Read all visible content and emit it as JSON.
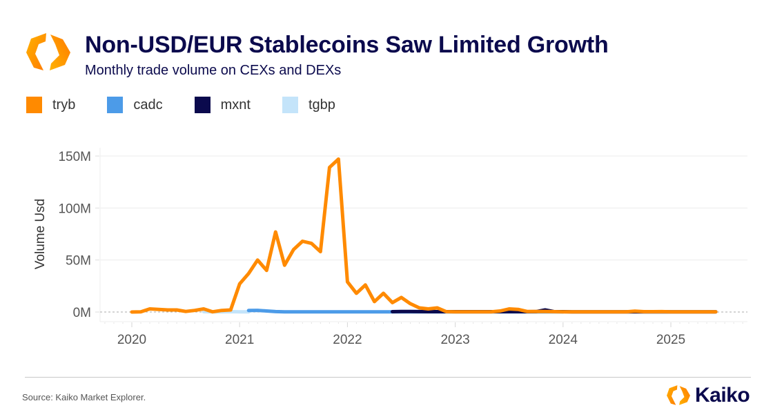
{
  "header": {
    "title": "Non-USD/EUR Stablecoins Saw Limited Growth",
    "subtitle": "Monthly trade volume on CEXs and DEXs",
    "logo_icon": "kaiko-hexagon-logo"
  },
  "legend": [
    {
      "label": "tryb",
      "color": "#ff8a00"
    },
    {
      "label": "cadc",
      "color": "#4c9be8"
    },
    {
      "label": "mxnt",
      "color": "#0b0a4d"
    },
    {
      "label": "tgbp",
      "color": "#c4e4fa"
    }
  ],
  "footer": {
    "source": "Source: Kaiko Market Explorer.",
    "brand": "Kaiko"
  },
  "chart_data": {
    "type": "line",
    "title": "Non-USD/EUR Stablecoins Saw Limited Growth",
    "subtitle": "Monthly trade volume on CEXs and DEXs",
    "xlabel": "",
    "ylabel": "Volume Usd",
    "ylim": [
      0,
      150
    ],
    "yunit": "M",
    "yticks": [
      0,
      50,
      100,
      150
    ],
    "ytick_labels": [
      "0M",
      "50M",
      "100M",
      "150M"
    ],
    "xticks": [
      2020,
      2021,
      2022,
      2023,
      2024,
      2025
    ],
    "xtick_labels": [
      "2020",
      "2021",
      "2022",
      "2023",
      "2024",
      "2025"
    ],
    "xlim": [
      "2019-08",
      "2026-01"
    ],
    "grid": true,
    "legend_position": "top-left",
    "series": [
      {
        "name": "tgbp",
        "color": "#c4e4fa",
        "start": "2020-09",
        "values": [
          0.3,
          0.2,
          0.2,
          0.3,
          0.2,
          0.1
        ]
      },
      {
        "name": "cadc",
        "color": "#4c9be8",
        "start": "2021-02",
        "values": [
          1.5,
          1.6,
          1.0,
          0.4,
          0.2,
          0.1,
          0.1,
          0.1,
          0.1,
          0.1,
          0.1,
          0.1,
          0.1,
          0.1,
          0.1,
          0.1,
          0.1,
          0.1,
          0.1,
          0.1,
          0.1,
          0.1,
          0.1,
          0.1,
          0.1,
          0.1,
          0.1,
          0.1,
          0.1,
          0.1,
          0.1,
          0.1,
          0.1,
          0.2,
          0.2,
          0.1
        ]
      },
      {
        "name": "mxnt",
        "color": "#0b0a4d",
        "start": "2022-06",
        "values": [
          0.3,
          0.5,
          0.5,
          0.4,
          0.3,
          0.3,
          0.3,
          0.3,
          0.3,
          0.3,
          0.3,
          0.3,
          0.3,
          0.3,
          0.3,
          0.3,
          0.4,
          2.0,
          0.3,
          0.3,
          0.2,
          0.2,
          0.2,
          0.2,
          0.2,
          0.2,
          0.2,
          0.2,
          0.2,
          0.2,
          0.2,
          0.2,
          0.2,
          0.2,
          0.2,
          0.2,
          0.2
        ]
      },
      {
        "name": "tryb",
        "color": "#ff8a00",
        "start": "2020-01",
        "values": [
          0.0,
          0.2,
          3.0,
          2.5,
          2.0,
          2.0,
          0.5,
          1.5,
          3.0,
          0.2,
          1.5,
          2.0,
          27,
          37,
          50,
          40,
          77,
          45,
          60,
          68,
          66,
          58,
          139,
          147,
          29,
          18,
          26,
          10,
          18,
          9,
          14,
          8,
          4,
          3,
          4,
          0.3,
          0.2,
          0.2,
          0.2,
          0.2,
          0.2,
          1.0,
          3.0,
          2.5,
          0.5,
          0.5,
          0.5,
          0.3,
          0.2,
          0.2,
          0.2,
          0.2,
          0.2,
          0.2,
          0.2,
          0.2,
          0.8,
          0.3,
          0.3,
          0.4,
          0.2,
          0.2,
          0.2,
          0.2,
          0.2,
          0.2
        ]
      }
    ]
  }
}
